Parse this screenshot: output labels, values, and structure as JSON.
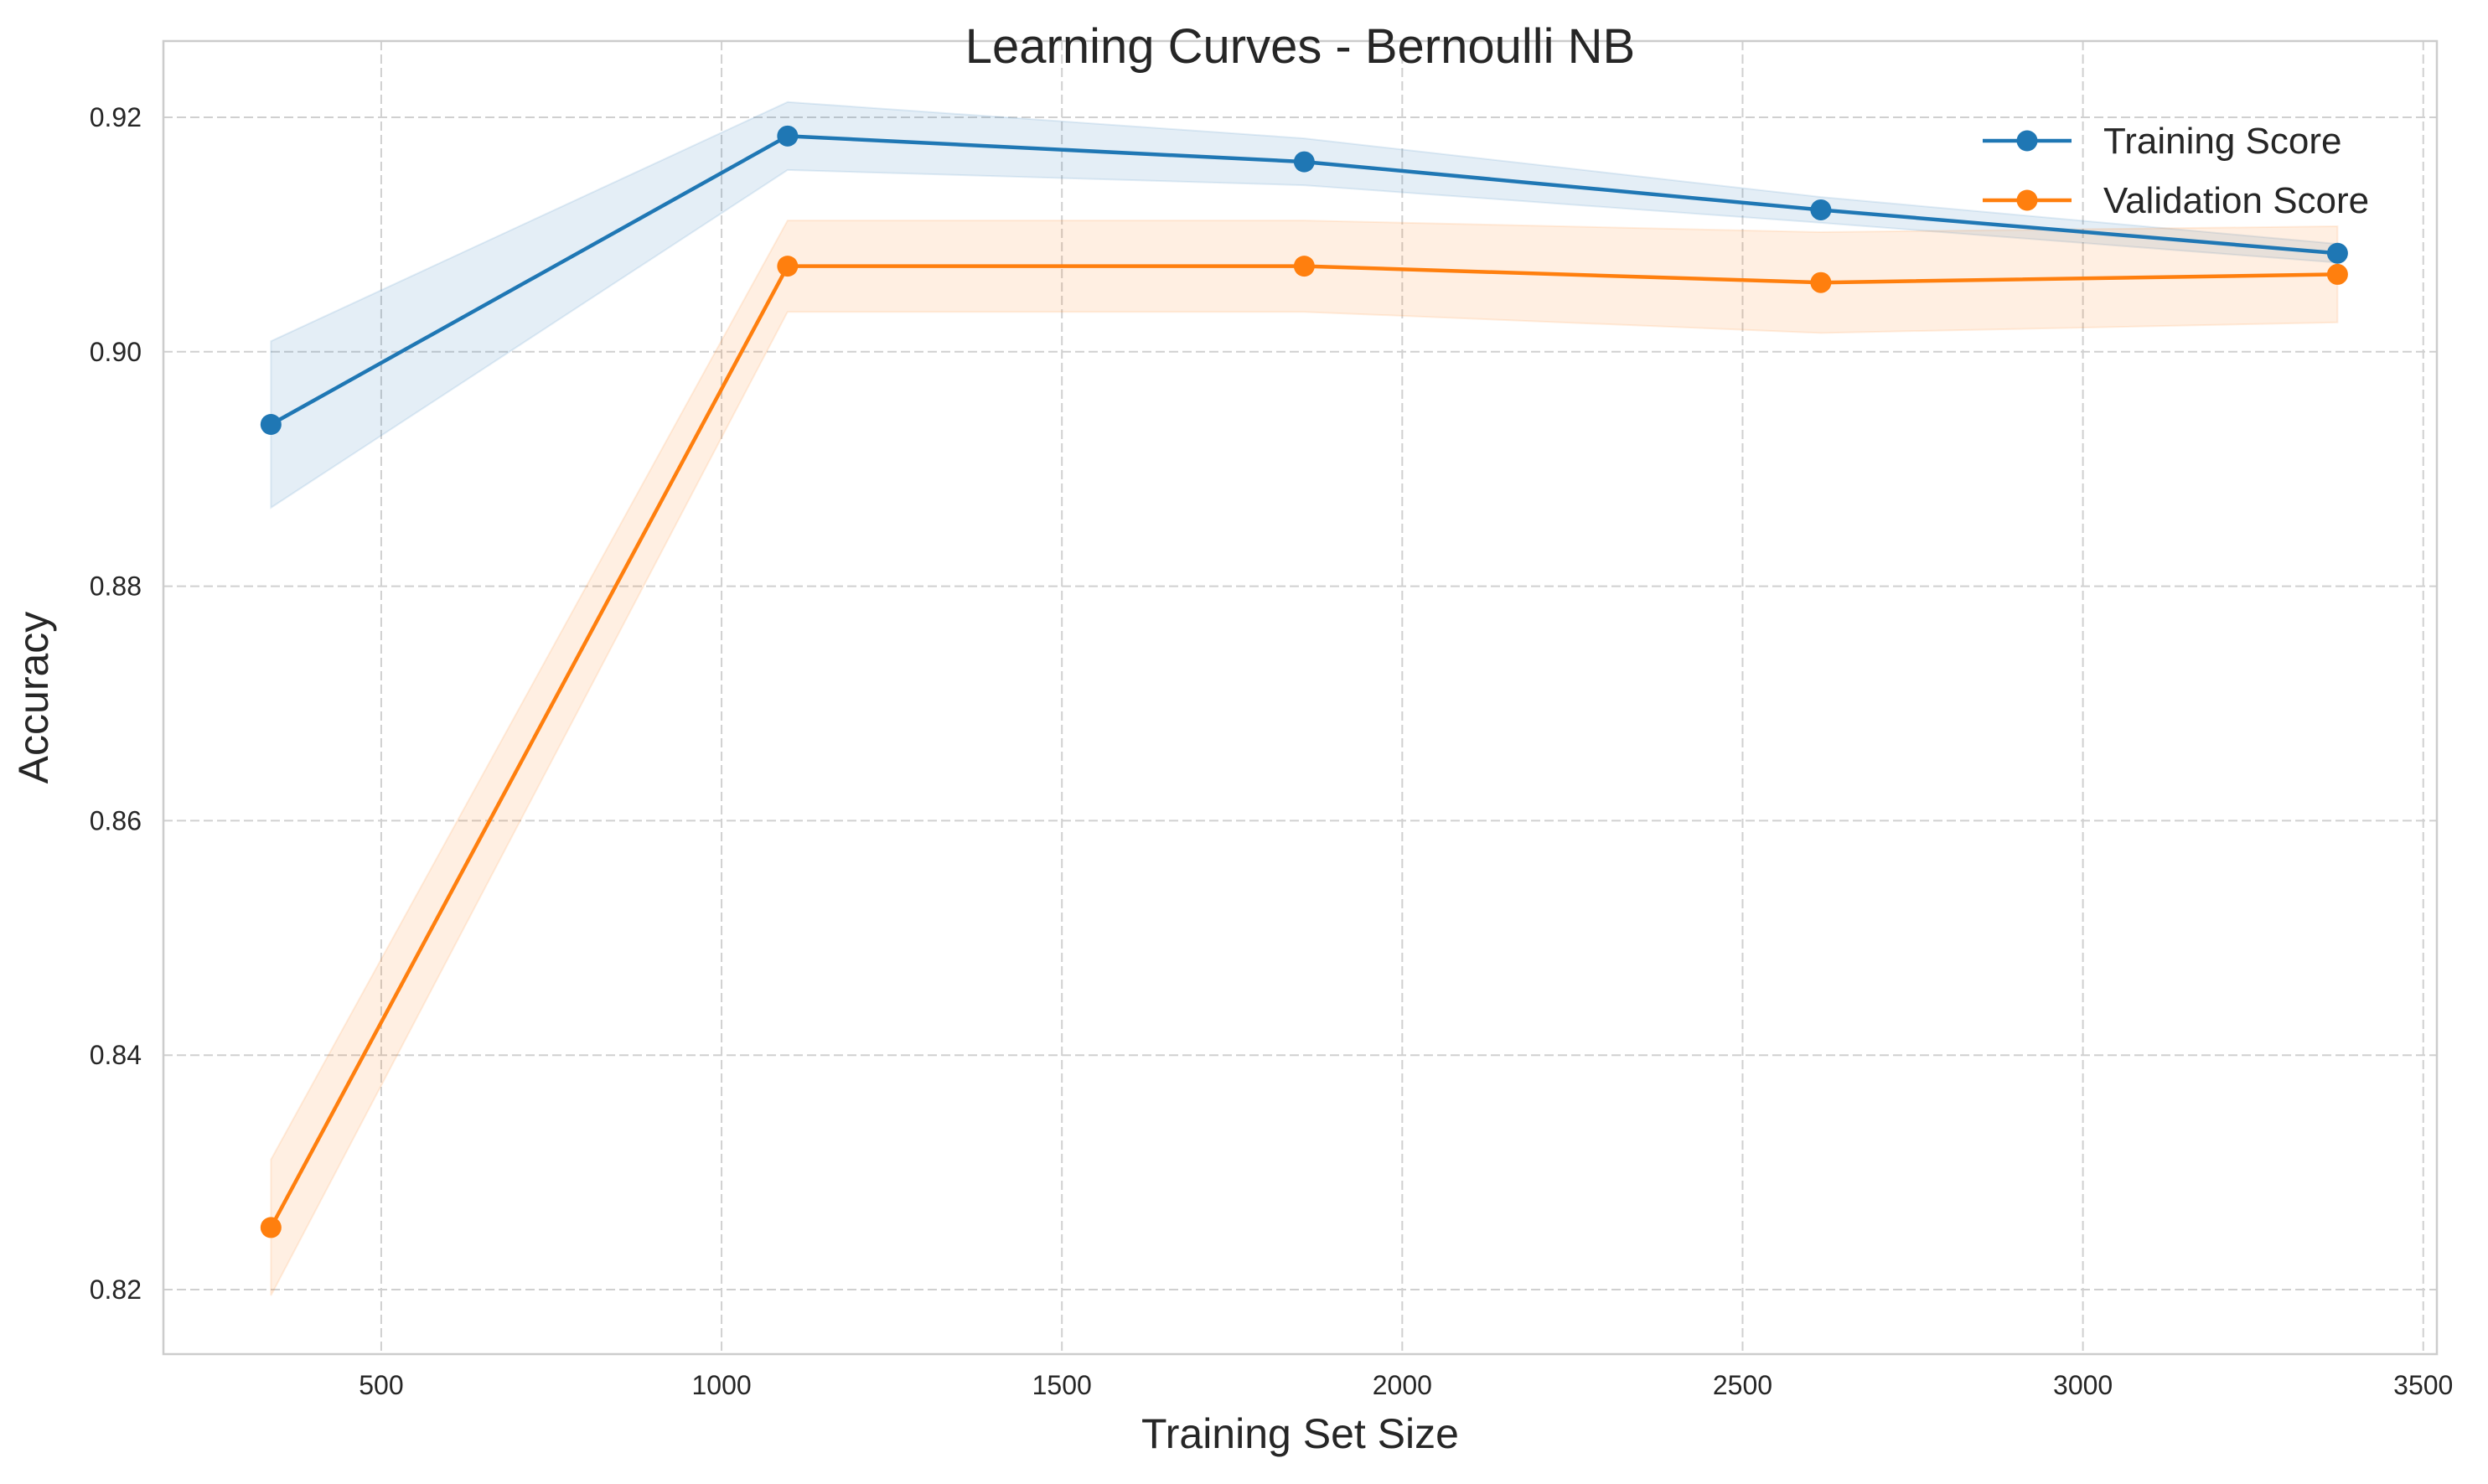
{
  "chart_data": {
    "type": "line",
    "title": "Learning Curves - Bernoulli NB",
    "xlabel": "Training Set Size",
    "ylabel": "Accuracy",
    "xlim": [
      180,
      3520
    ],
    "ylim": [
      0.8145,
      0.9265
    ],
    "xticks": [
      500,
      1000,
      1500,
      2000,
      2500,
      3000,
      3500
    ],
    "yticks": [
      0.82,
      0.84,
      0.86,
      0.88,
      0.9,
      0.92
    ],
    "xtick_labels": [
      "500",
      "1000",
      "1500",
      "2000",
      "2500",
      "3000",
      "3500"
    ],
    "ytick_labels": [
      "0.82",
      "0.84",
      "0.86",
      "0.88",
      "0.90",
      "0.92"
    ],
    "grid": true,
    "legend_position": "top-right",
    "x": [
      338,
      1097,
      1856,
      2615,
      3374
    ],
    "series": [
      {
        "name": "Training Score",
        "color": "#1f77b4",
        "values": [
          0.8938,
          0.9184,
          0.9162,
          0.9121,
          0.9084
        ],
        "band_low": [
          0.8867,
          0.9155,
          0.9142,
          0.911,
          0.9076
        ],
        "band_high": [
          0.9009,
          0.9213,
          0.9182,
          0.9132,
          0.9092
        ]
      },
      {
        "name": "Validation Score",
        "color": "#ff7f0e",
        "values": [
          0.8253,
          0.9073,
          0.9073,
          0.9059,
          0.9066
        ],
        "band_low": [
          0.8195,
          0.9034,
          0.9034,
          0.9016,
          0.9025
        ],
        "band_high": [
          0.8311,
          0.9112,
          0.9112,
          0.9102,
          0.9107
        ]
      }
    ]
  }
}
